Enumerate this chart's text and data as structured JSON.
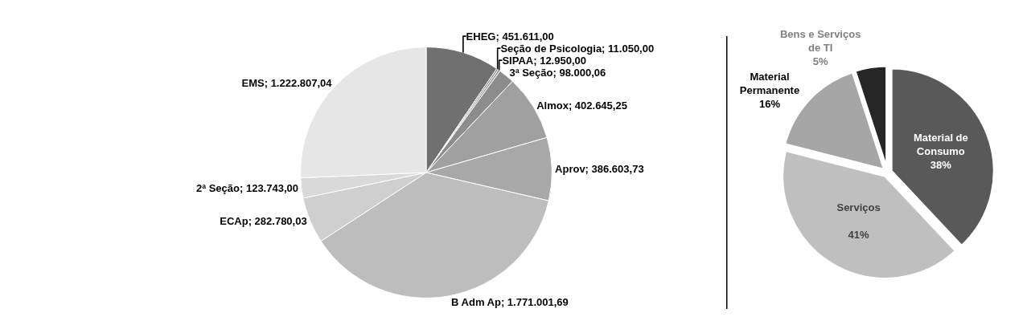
{
  "chart_data": [
    {
      "type": "pie",
      "categories": [
        "EHEG",
        "Seção de Psicologia",
        "SIPAA",
        "3ª Seção",
        "Almox",
        "Aprov",
        "B Adm Ap",
        "ECAp",
        "2ª Seção",
        "EMS"
      ],
      "values": [
        451611.0,
        11050.0,
        12950.0,
        98000.06,
        402645.25,
        386603.73,
        1771001.69,
        282780.03,
        123743.0,
        1222807.04
      ],
      "value_labels": [
        "451.611,00",
        "11.050,00",
        "12.950,00",
        "98.000,06",
        "402.645,25",
        "386.603,73",
        "1.771.001,69",
        "282.780,03",
        "123.743,00",
        "1.222.807,04"
      ],
      "colors": [
        "#707070",
        "#8a8a8a",
        "#9a9a9a",
        "#8c8c8c",
        "#a0a0a0",
        "#a8a8a8",
        "#bdbdbd",
        "#cfcfcf",
        "#d9d9d9",
        "#e6e6e6"
      ]
    },
    {
      "type": "pie",
      "categories": [
        "Material de Consumo",
        "Serviços",
        "Material Permanente",
        "Bens e Serviços de TI"
      ],
      "values": [
        38,
        41,
        16,
        5
      ],
      "value_labels": [
        "38%",
        "41%",
        "16%",
        "5%"
      ],
      "colors": [
        "#595959",
        "#bfbfbf",
        "#a6a6a6",
        "#262626"
      ]
    }
  ]
}
